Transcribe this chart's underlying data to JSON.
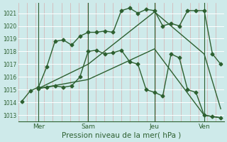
{
  "background_color": "#ceeaea",
  "grid_color_h": "#ffffff",
  "grid_color_v": "#e8b0b0",
  "line_color": "#2d6030",
  "xlabel": "Pression niveau de la mer( hPa )",
  "ylim": [
    1012.5,
    1021.8
  ],
  "yticks": [
    1013,
    1014,
    1015,
    1016,
    1017,
    1018,
    1019,
    1020,
    1021
  ],
  "xlim": [
    -0.2,
    12.2
  ],
  "xtick_labels": [
    "Mer",
    "Sam",
    "Jeu",
    "Ven"
  ],
  "xtick_positions": [
    1,
    4,
    8,
    11
  ],
  "vline_positions": [
    1,
    4,
    8,
    11
  ],
  "num_vcols": 24,
  "series": [
    {
      "x": [
        0,
        0.5,
        1,
        1.5,
        2,
        2.5,
        3,
        3.5,
        4,
        4.5,
        5,
        5.5,
        6,
        6.5,
        7,
        7.5,
        8,
        8.5,
        9,
        9.5,
        10,
        10.5,
        11,
        11.5,
        12
      ],
      "y": [
        1014.1,
        1014.9,
        1015.2,
        1016.8,
        1018.8,
        1018.9,
        1018.5,
        1019.2,
        1019.5,
        1019.5,
        1019.6,
        1019.5,
        1021.2,
        1021.4,
        1021.0,
        1021.3,
        1021.2,
        1020.0,
        1020.2,
        1020.0,
        1021.2,
        1021.2,
        1021.2,
        1017.8,
        1017.0
      ],
      "marker": "D",
      "markersize": 2.5,
      "linewidth": 1.0
    },
    {
      "x": [
        1,
        1.5,
        2,
        2.5,
        3,
        3.5,
        4,
        4.5,
        5,
        5.5,
        6,
        6.5,
        7,
        7.5,
        8,
        8.5,
        9,
        9.5,
        10,
        10.5,
        11,
        11.5,
        12
      ],
      "y": [
        1015.1,
        1015.2,
        1015.3,
        1015.2,
        1015.3,
        1016.0,
        1018.0,
        1018.1,
        1017.8,
        1017.9,
        1018.1,
        1017.2,
        1017.0,
        1015.0,
        1014.8,
        1014.5,
        1017.8,
        1017.5,
        1015.0,
        1014.8,
        1013.0,
        1012.9,
        1012.8
      ],
      "marker": "D",
      "markersize": 2.5,
      "linewidth": 1.0
    },
    {
      "x": [
        1,
        4,
        8,
        11,
        12
      ],
      "y": [
        1015.1,
        1017.0,
        1021.1,
        1017.8,
        1013.5
      ],
      "marker": null,
      "markersize": 0,
      "linewidth": 1.0
    },
    {
      "x": [
        1,
        4,
        8,
        11,
        12
      ],
      "y": [
        1015.1,
        1015.8,
        1018.2,
        1013.0,
        1012.8
      ],
      "marker": null,
      "markersize": 0,
      "linewidth": 1.0
    }
  ]
}
